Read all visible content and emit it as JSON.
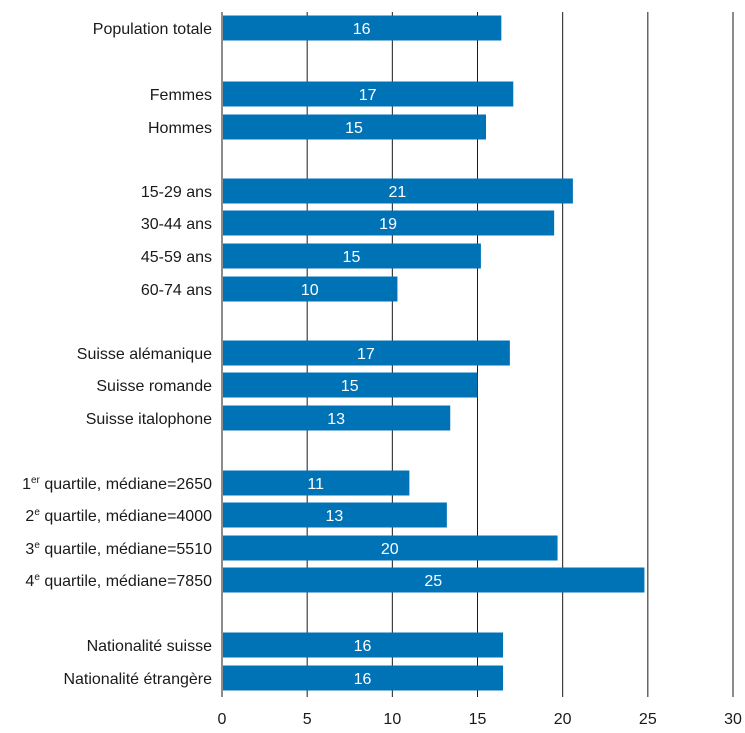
{
  "chart_data": {
    "type": "bar",
    "orientation": "horizontal",
    "title": "",
    "xlabel": "",
    "ylabel": "",
    "xlim": [
      0,
      30
    ],
    "x_ticks": [
      0,
      5,
      10,
      15,
      20,
      25,
      30
    ],
    "grid": "vertical",
    "bar_color": "#0073b7",
    "categories": [
      {
        "label": "Population totale",
        "value": 16.4,
        "display": "16"
      },
      {
        "label": "Femmes",
        "value": 17.1,
        "display": "17"
      },
      {
        "label": "Hommes",
        "value": 15.5,
        "display": "15"
      },
      {
        "label": "15-29 ans",
        "value": 20.6,
        "display": "21"
      },
      {
        "label": "30-44 ans",
        "value": 19.5,
        "display": "19"
      },
      {
        "label": "45-59 ans",
        "value": 15.2,
        "display": "15"
      },
      {
        "label": "60-74 ans",
        "value": 10.3,
        "display": "10"
      },
      {
        "label": "Suisse alémanique",
        "value": 16.9,
        "display": "17"
      },
      {
        "label": "Suisse romande",
        "value": 15.0,
        "display": "15"
      },
      {
        "label": "Suisse italophone",
        "value": 13.4,
        "display": "13"
      },
      {
        "label_main": "1",
        "label_sup": "er",
        "label_rest": " quartile, médiane=2650",
        "value": 11.0,
        "display": "11"
      },
      {
        "label_main": "2",
        "label_sup": "e",
        "label_rest": " quartile, médiane=4000",
        "value": 13.2,
        "display": "13"
      },
      {
        "label_main": "3",
        "label_sup": "e",
        "label_rest": " quartile, médiane=5510",
        "value": 19.7,
        "display": "20"
      },
      {
        "label_main": "4",
        "label_sup": "e",
        "label_rest": " quartile, médiane=7850",
        "value": 24.8,
        "display": "25"
      },
      {
        "label": "Nationalité suisse",
        "value": 16.5,
        "display": "16"
      },
      {
        "label": "Nationalité étrangère",
        "value": 16.5,
        "display": "16"
      }
    ]
  }
}
